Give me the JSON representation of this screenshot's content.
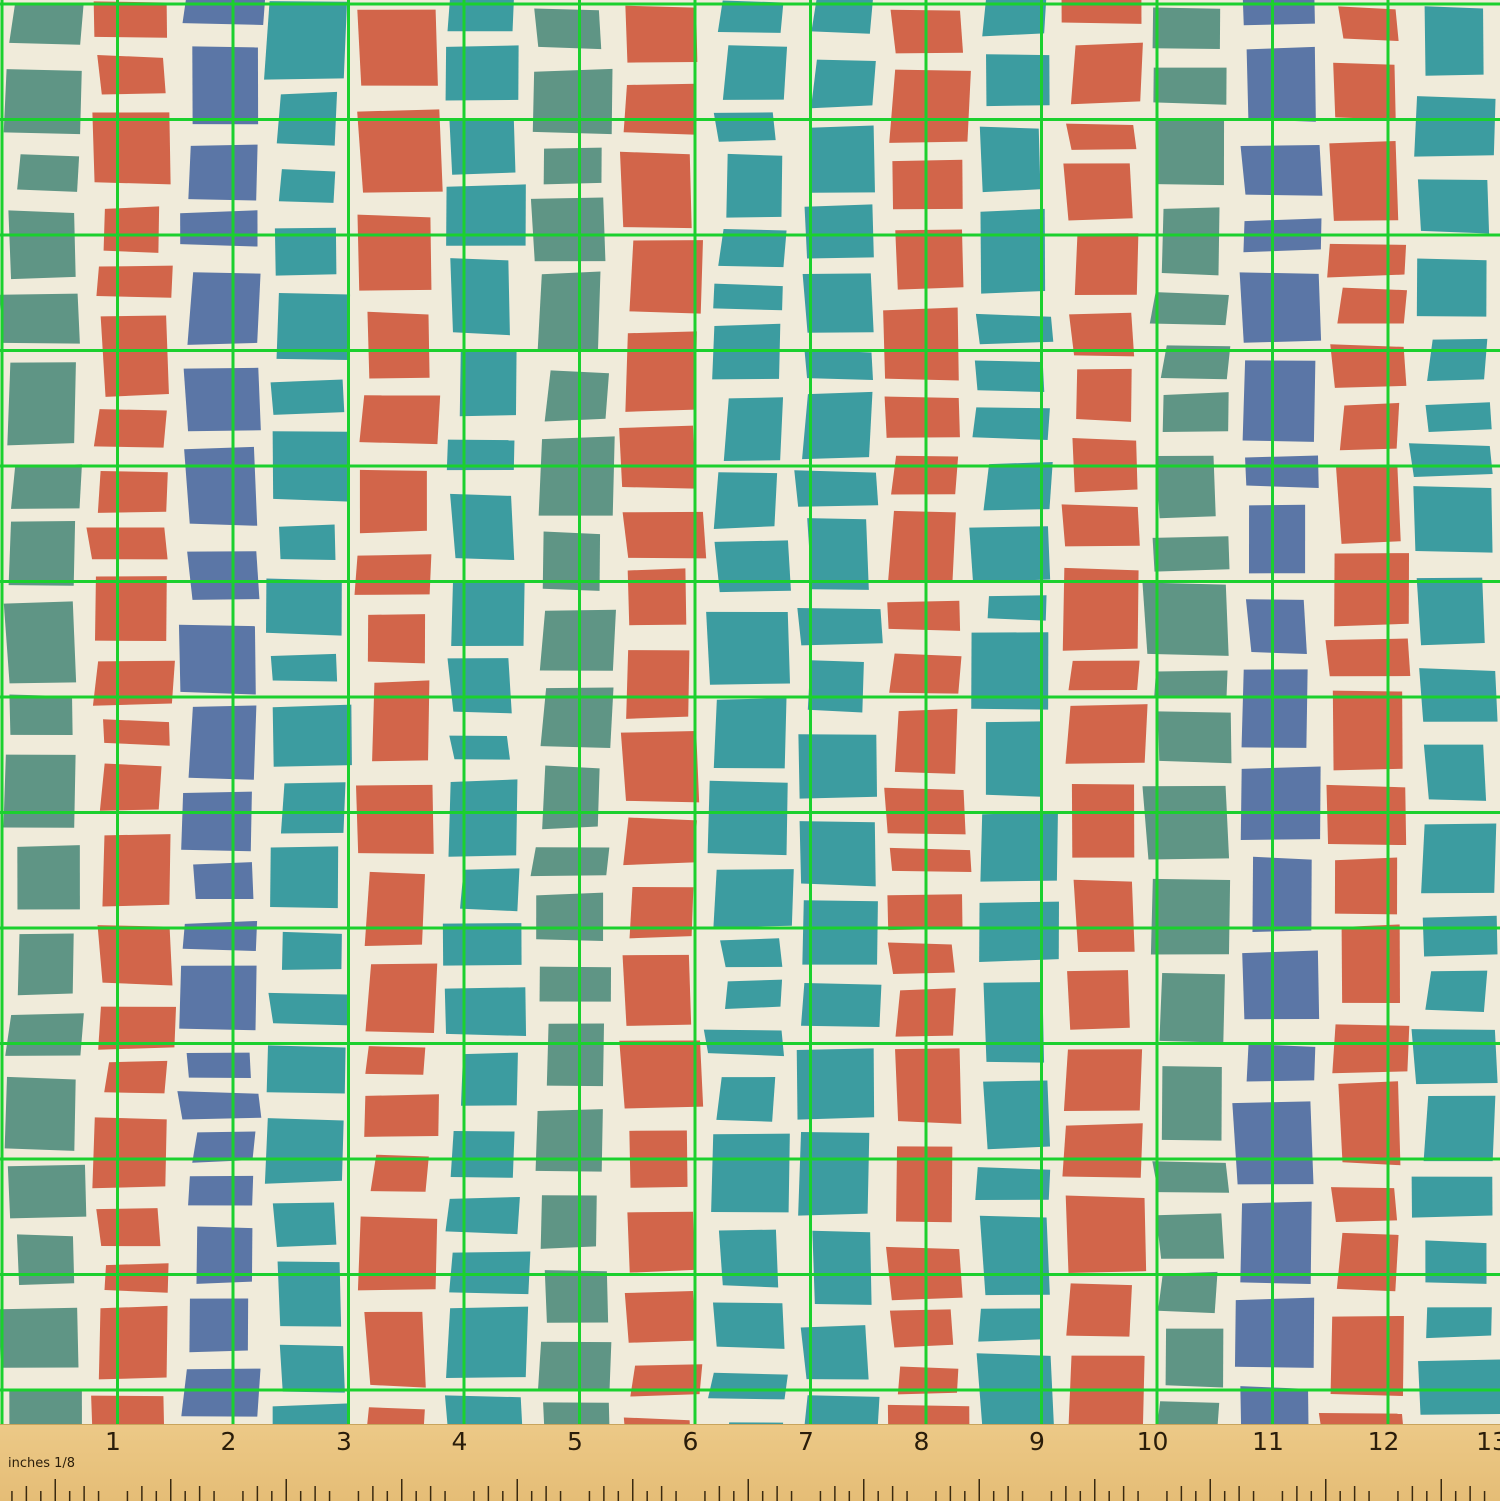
{
  "ruler": {
    "unit_label": "inches 1/8",
    "numbers": [
      "1",
      "2",
      "3",
      "4",
      "5",
      "6",
      "7",
      "8",
      "9",
      "10",
      "11",
      "12",
      "13"
    ]
  },
  "colors": {
    "background": "#f0ebda",
    "teal": "#3c9ca0",
    "sage": "#5f9585",
    "coral": "#d2654a",
    "slate_blue": "#5b76a6",
    "grid_line": "#1bd02e",
    "ruler_wood": "#e9c47f"
  },
  "pattern": {
    "description_type": "fabric swatch",
    "columns": [
      "sage",
      "coral",
      "slate_blue",
      "teal",
      "coral",
      "teal",
      "sage",
      "coral",
      "teal",
      "teal",
      "coral",
      "teal",
      "coral",
      "sage",
      "slate_blue",
      "coral",
      "teal"
    ]
  }
}
